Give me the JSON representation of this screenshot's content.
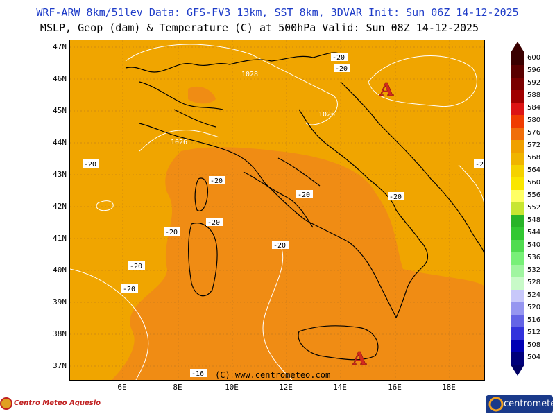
{
  "header": {
    "line1": "WRF-ARW 8km/51lev  Data: GFS-FV3 13km, SST 8km, 3DVAR  Init: Sun 06Z 14-12-2025",
    "line2": "MSLP, Geop (dam) & Temperature (C) at 500hPa  Valid: Sun 08Z 14-12-2025"
  },
  "axes": {
    "lat_labels": [
      "47N",
      "46N",
      "45N",
      "44N",
      "43N",
      "42N",
      "41N",
      "40N",
      "39N",
      "38N",
      "37N"
    ],
    "lon_labels": [
      "6E",
      "8E",
      "10E",
      "12E",
      "14E",
      "16E",
      "18E"
    ]
  },
  "copyright": "(C) www.centrometeo.com",
  "pressure_labels": [
    "1028",
    "1026",
    "1026"
  ],
  "temp_labels": [
    "-20",
    "-20",
    "-20",
    "-20",
    "-20",
    "-20",
    "-20",
    "-20",
    "-20",
    "-20",
    "-20",
    "-16",
    "-2"
  ],
  "high_markers": [
    "A",
    "A"
  ],
  "colorbar": {
    "levels": [
      "600",
      "596",
      "592",
      "588",
      "584",
      "580",
      "576",
      "572",
      "568",
      "564",
      "560",
      "556",
      "552",
      "548",
      "544",
      "540",
      "536",
      "532",
      "528",
      "524",
      "520",
      "516",
      "512",
      "508",
      "504"
    ],
    "colors": [
      "#3a0000",
      "#5a0000",
      "#7a0000",
      "#a00000",
      "#dc1414",
      "#f03c00",
      "#f06e0a",
      "#f0a000",
      "#f0b400",
      "#f5d200",
      "#fae600",
      "#ffff64",
      "#c8e632",
      "#28b428",
      "#32c832",
      "#50dc50",
      "#78f078",
      "#a0f5a0",
      "#c8fac8",
      "#c8c8fa",
      "#9696f0",
      "#6464e6",
      "#3232dc",
      "#0000b4",
      "#00007a"
    ],
    "top_color": "#3a0000",
    "bottom_color": "#000064"
  },
  "branding": {
    "left_logo": "Centro Meteo Aquesio",
    "right_logo": "centrometeo"
  }
}
